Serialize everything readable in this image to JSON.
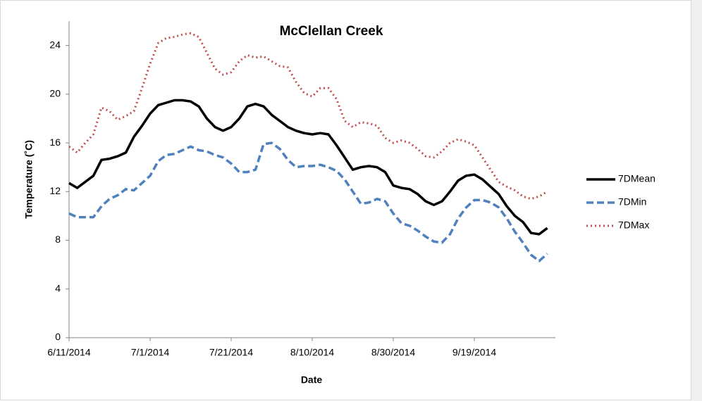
{
  "chart_data": {
    "type": "line",
    "title": "McClellan Creek",
    "x_label": "Date",
    "y_label": "Temperature (˚C)",
    "x": [
      "6/11/2014",
      "6/13/2014",
      "6/15/2014",
      "6/17/2014",
      "6/19/2014",
      "6/21/2014",
      "6/23/2014",
      "6/25/2014",
      "6/27/2014",
      "6/29/2014",
      "7/1/2014",
      "7/3/2014",
      "7/5/2014",
      "7/7/2014",
      "7/9/2014",
      "7/11/2014",
      "7/13/2014",
      "7/15/2014",
      "7/17/2014",
      "7/19/2014",
      "7/21/2014",
      "7/23/2014",
      "7/25/2014",
      "7/27/2014",
      "7/29/2014",
      "7/31/2014",
      "8/2/2014",
      "8/4/2014",
      "8/6/2014",
      "8/8/2014",
      "8/10/2014",
      "8/12/2014",
      "8/14/2014",
      "8/16/2014",
      "8/18/2014",
      "8/20/2014",
      "8/22/2014",
      "8/24/2014",
      "8/26/2014",
      "8/28/2014",
      "8/30/2014",
      "9/1/2014",
      "9/3/2014",
      "9/5/2014",
      "9/7/2014",
      "9/9/2014",
      "9/11/2014",
      "9/13/2014",
      "9/15/2014",
      "9/17/2014",
      "9/19/2014",
      "9/21/2014",
      "9/23/2014",
      "9/25/2014",
      "9/27/2014",
      "9/29/2014",
      "10/1/2014",
      "10/3/2014",
      "10/5/2014",
      "10/7/2014"
    ],
    "series": [
      {
        "name": "7DMean",
        "color": "#000000",
        "style": "solid",
        "values": [
          12.7,
          12.3,
          12.8,
          13.3,
          14.6,
          14.7,
          14.9,
          15.2,
          16.5,
          17.4,
          18.4,
          19.1,
          19.3,
          19.5,
          19.5,
          19.4,
          19.0,
          18.0,
          17.3,
          17.0,
          17.3,
          18.0,
          19.0,
          19.2,
          19.0,
          18.3,
          17.8,
          17.3,
          17.0,
          16.8,
          16.7,
          16.8,
          16.7,
          15.8,
          14.8,
          13.8,
          14.0,
          14.1,
          14.0,
          13.6,
          12.5,
          12.3,
          12.2,
          11.8,
          11.2,
          10.9,
          11.2,
          12.0,
          12.9,
          13.3,
          13.4,
          13.0,
          12.4,
          11.8,
          10.8,
          10.0,
          9.5,
          8.6,
          8.5,
          9.0
        ]
      },
      {
        "name": "7DMin",
        "color": "#4f81bd",
        "style": "dashed",
        "values": [
          10.2,
          9.9,
          9.9,
          9.9,
          10.8,
          11.4,
          11.7,
          12.2,
          12.1,
          12.7,
          13.3,
          14.5,
          15.0,
          15.1,
          15.4,
          15.7,
          15.4,
          15.3,
          15.0,
          14.8,
          14.3,
          13.6,
          13.6,
          13.8,
          15.9,
          16.0,
          15.5,
          14.6,
          14.0,
          14.1,
          14.1,
          14.2,
          14.0,
          13.7,
          13.0,
          12.0,
          11.0,
          11.1,
          11.4,
          11.2,
          10.2,
          9.4,
          9.2,
          8.8,
          8.3,
          7.9,
          7.8,
          8.5,
          9.8,
          10.7,
          11.3,
          11.3,
          11.1,
          10.7,
          9.8,
          8.7,
          7.8,
          6.8,
          6.3,
          6.9
        ]
      },
      {
        "name": "7DMax",
        "color": "#c0504d",
        "style": "dotted",
        "values": [
          15.7,
          15.2,
          16.0,
          16.7,
          18.9,
          18.6,
          17.9,
          18.2,
          18.6,
          20.5,
          22.5,
          24.2,
          24.6,
          24.7,
          24.9,
          25.0,
          24.7,
          23.4,
          22.1,
          21.6,
          21.8,
          22.7,
          23.2,
          23.0,
          23.1,
          22.7,
          22.3,
          22.2,
          21.0,
          20.1,
          19.8,
          20.5,
          20.5,
          19.6,
          17.8,
          17.3,
          17.7,
          17.6,
          17.4,
          16.4,
          16.0,
          16.2,
          16.0,
          15.5,
          14.9,
          14.8,
          15.3,
          16.0,
          16.3,
          16.1,
          15.8,
          14.8,
          13.8,
          12.8,
          12.4,
          12.1,
          11.6,
          11.4,
          11.6,
          12.0
        ]
      }
    ],
    "xlim": [
      "6/11/2014",
      "10/9/2014"
    ],
    "xticks": [
      "6/11/2014",
      "7/1/2014",
      "7/21/2014",
      "8/10/2014",
      "8/30/2014",
      "9/19/2014"
    ],
    "ylim": [
      0,
      26
    ],
    "yticks": [
      0,
      4,
      8,
      12,
      16,
      20,
      24
    ],
    "grid": false,
    "legend": "right"
  }
}
